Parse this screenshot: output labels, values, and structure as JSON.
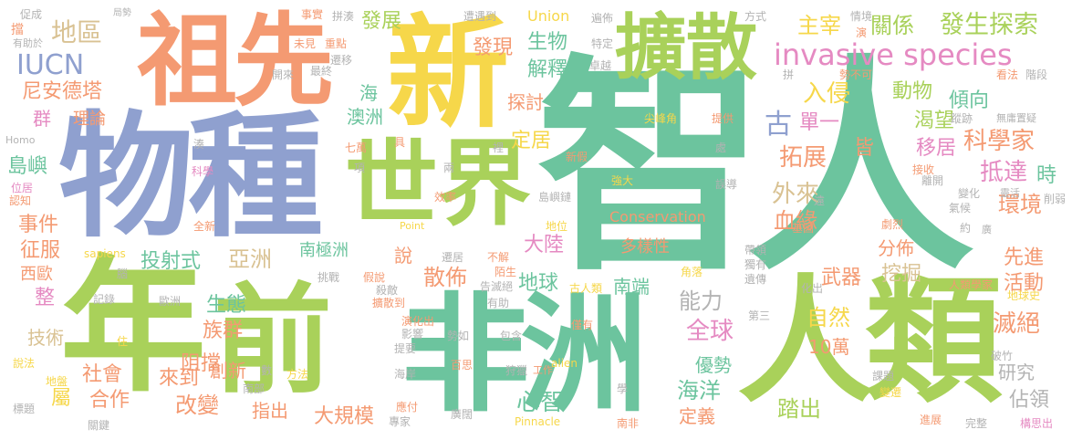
{
  "palette": {
    "green": "#6cc49e",
    "orange": "#f49a72",
    "blue": "#8fa0cf",
    "pink": "#e58ac2",
    "lime": "#a9d15a",
    "yellow": "#f6d74a",
    "tan": "#d9c293",
    "grey": "#b3b3b3"
  },
  "words": {
    "zhiren": "智人",
    "wuzhong": "物種",
    "nian": "年",
    "qian": "前",
    "feizhou": "非洲",
    "renlei": "人類",
    "xin": "新",
    "zuxian": "祖先",
    "shijie": "世界",
    "kuosan": "擴散",
    "invasive": "invasive species",
    "fasheng": "發生探索",
    "diqu": "地區",
    "iucn": "IUCN",
    "fazhan": "發展",
    "faxian": "發現",
    "shengwu": "生物",
    "jieshi": "解釋",
    "zhuzai": "主宰",
    "guanxi": "關係",
    "nianandete": "尼安德塔",
    "lilun": "理論",
    "qun": "群",
    "hai": "海",
    "aozhou": "澳洲",
    "tantao": "探討",
    "dingju": "定居",
    "ruqin": "入侵",
    "gu": "古",
    "danyi": "單一",
    "zhong": "中",
    "dongwu": "動物",
    "qingxiang": "傾向",
    "kewang": "渴望",
    "yiju": "移居",
    "kexuejia": "科學家",
    "daoda": "抵達",
    "tuozhan": "拓展",
    "jie": "皆",
    "wailai": "外來",
    "xueyuan": "血緣",
    "huanjing": "環境",
    "shi": "時",
    "daoyu": "島嶼",
    "shijian": "事件",
    "zhengfu": "征服",
    "xiou": "西歐",
    "zheng": "整",
    "jishu": "技術",
    "shengtai": "生態",
    "zuqun": "族群",
    "touseshi": "投射式",
    "yazhou": "亞洲",
    "nanjizhou": "南極洲",
    "shuo": "說",
    "sanbu": "散佈",
    "dalu": "大陸",
    "diqiu": "地球",
    "duoyangxing": "多樣性",
    "fenbu": "分佈",
    "wajue": "挖掘",
    "xianjin": "先進",
    "huodong": "活動",
    "wuqi": "武器",
    "nengli": "能力",
    "nanduan": "南端",
    "quanqiu": "全球",
    "ziran": "自然",
    "miejue": "滅絕",
    "zuduan": "阻擋",
    "shehui": "社會",
    "shu": "屬",
    "hezuo": "合作",
    "laidao": "來到",
    "gaibian": "改變",
    "chuangxin": "創新",
    "zhichu": "指出",
    "daguimo": "大規模",
    "xinzhi": "心智",
    "youshi": "優勢",
    "haiyang": "海洋",
    "dingyi": "定義",
    "tachu": "踏出",
    "yanjiu": "研究",
    "zhanling": "佔領",
    "shiwan": "10萬",
    "conservation": "Conservation",
    "union": "Union",
    "point": "Point",
    "pinnacle": "Pinnacle",
    "alien": "alien",
    "sapiens": "sapiens",
    "homo": "Homo",
    "cucheng": "促成",
    "youzhuyu": "有助於",
    "dang": "擋",
    "jushi": "局勢",
    "shishi": "事實",
    "weijian": "未見",
    "chongdian": "重點",
    "qianyi": "遷移",
    "zuizhong": "最終",
    "kailai": "開來",
    "pincou": "拼湊",
    "zaoyudao": "遭遇到",
    "bianbu": "遍佈",
    "teding": "特定",
    "zhuoyue": "卓越",
    "fangshi": "方式",
    "qingjing": "情境",
    "yan": "演",
    "pin": "拼",
    "shibukedang": "勢不可",
    "kanfa": "看法",
    "jieduan": "階段",
    "zongji": "蹤跡",
    "wuyuzhiyi": "無庸置疑",
    "jianfengjiao": "尖峰角",
    "tigong": "提供",
    "qiwan": "七萬",
    "ju": "具",
    "li": "裡",
    "chu": "處",
    "xinjia": "新假",
    "jieshou": "接收",
    "bianhua": "變化",
    "lingxiu": "靈活",
    "qihou": "氣候",
    "likai": "離開",
    "xiaoruo": "削弱",
    "wuduan": "誤導",
    "yuan": "遠",
    "xiang": "項",
    "liang": "兩",
    "qiangda": "強大",
    "xiaolu": "效率",
    "daoyulian": "島嶼鏈",
    "quanxin": "全新",
    "diwei": "地位",
    "jiyin": "基因",
    "julie": "劇烈",
    "daixing": "帶領",
    "dute": "獨有",
    "yichuan": "遺傳",
    "yue": "約",
    "guang": "廣",
    "renleixuejia": "人類學家",
    "diqiushi": "地球史",
    "huachu": "化出",
    "jiaoluo": "角落",
    "jiashuo": "假說",
    "tiaozhan": "挑戰",
    "qianju": "遷居",
    "bujie": "不解",
    "mosheng": "陌生",
    "gaomiejue": "告滅絕",
    "kuosandao": "擴散到",
    "yinghua": "演化出",
    "gurenlei": "古人類",
    "youzhu": "有助",
    "shadi": "殺敵",
    "zhiyou": "僅有",
    "yingxiang": "影響",
    "shiru": "勢如",
    "tiyao": "提要",
    "baohan": "包含",
    "haian": "海岸",
    "baisi": "百思",
    "shoulie": "狩獵",
    "gongzuo": "工作",
    "xue": "學",
    "nanfei": "南非",
    "yingfu": "應付",
    "guangkuo": "廣闊",
    "zhuanjia": "專家",
    "nanbu": "南部",
    "fangfa": "方法",
    "shu2": "數",
    "biaoti": "標題",
    "guanjian": "關鍵",
    "shuofa": "說法",
    "dipan": "地盤",
    "jilu": "記錄",
    "ouzhou": "歐洲",
    "nao": "腦",
    "zhu": "住",
    "weizhi": "位居",
    "renzhi": "認知",
    "kexue": "科學",
    "cou": "湊",
    "dishan": "第三",
    "ketai": "課題",
    "bianqian": "變遷",
    "jinchang": "進展",
    "wanzheng": "完整",
    "gousi": "構思出",
    "pofu": "破竹"
  }
}
